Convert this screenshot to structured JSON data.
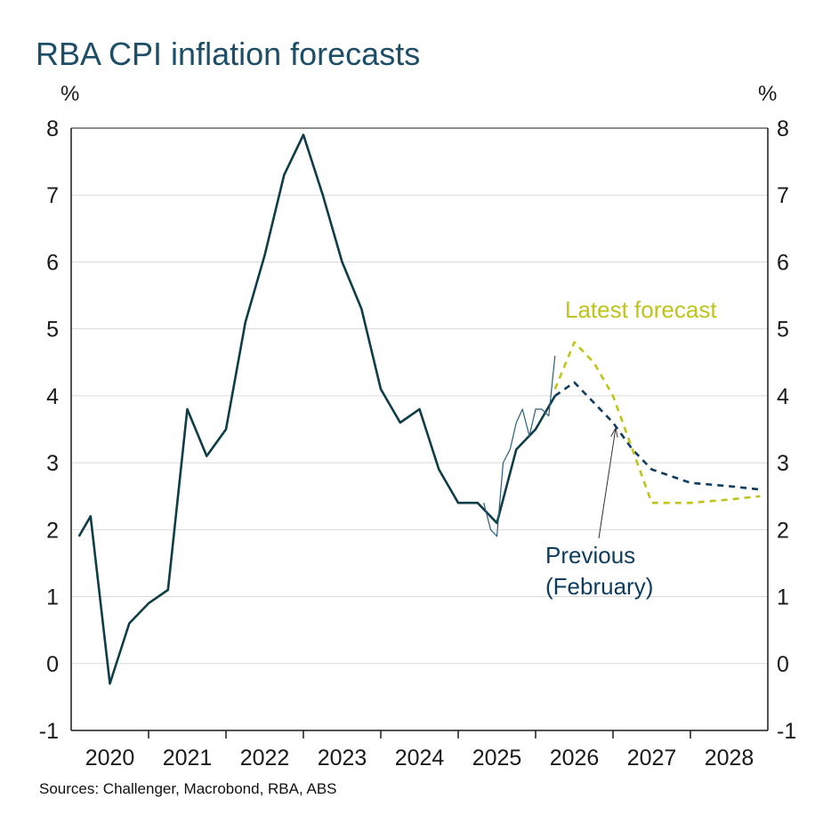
{
  "title": "RBA CPI inflation forecasts",
  "source": "Sources: Challenger, Macrobond, RBA, ABS",
  "colors": {
    "title": "#1d4e68",
    "actual": "#0f3d47",
    "monthly": "#2a5f7a",
    "previous": "#0d3c5e",
    "latest": "#bfc41a",
    "grid": "#d9d9d9",
    "axis": "#1a1a1a"
  },
  "chart_data": {
    "type": "line",
    "title": "RBA CPI inflation forecasts",
    "ylabel_left": "%",
    "ylabel_right": "%",
    "ylim": [
      -1,
      8
    ],
    "yticks": [
      -1,
      0,
      1,
      2,
      3,
      4,
      5,
      6,
      7,
      8
    ],
    "xlim": [
      2019.5,
      2028.5
    ],
    "xtick_labels": [
      "2020",
      "2021",
      "2022",
      "2023",
      "2024",
      "2025",
      "2026",
      "2027",
      "2028"
    ],
    "grid": "horizontal",
    "annotations": [
      {
        "text": "Latest forecast",
        "series": "latest"
      },
      {
        "text": "Previous",
        "series": "previous"
      },
      {
        "text": "(February)",
        "series": "previous"
      }
    ],
    "series": [
      {
        "id": "actual",
        "style": "solid",
        "points": [
          [
            2019.6,
            1.9
          ],
          [
            2019.75,
            2.2
          ],
          [
            2020.0,
            -0.3
          ],
          [
            2020.25,
            0.6
          ],
          [
            2020.5,
            0.9
          ],
          [
            2020.75,
            1.1
          ],
          [
            2021.0,
            3.8
          ],
          [
            2021.25,
            3.1
          ],
          [
            2021.5,
            3.5
          ],
          [
            2021.75,
            5.1
          ],
          [
            2022.0,
            6.1
          ],
          [
            2022.25,
            7.3
          ],
          [
            2022.5,
            7.9
          ],
          [
            2022.75,
            7.0
          ],
          [
            2023.0,
            6.0
          ],
          [
            2023.25,
            5.3
          ],
          [
            2023.5,
            4.1
          ],
          [
            2023.75,
            3.6
          ],
          [
            2024.0,
            3.8
          ],
          [
            2024.25,
            2.9
          ],
          [
            2024.5,
            2.4
          ],
          [
            2024.75,
            2.4
          ],
          [
            2025.0,
            2.1
          ],
          [
            2025.25,
            3.2
          ],
          [
            2025.5,
            3.5
          ],
          [
            2025.75,
            4.0
          ]
        ]
      },
      {
        "id": "monthly",
        "style": "thin",
        "points": [
          [
            2024.83,
            2.4
          ],
          [
            2024.92,
            2.0
          ],
          [
            2025.0,
            1.9
          ],
          [
            2025.08,
            3.0
          ],
          [
            2025.17,
            3.2
          ],
          [
            2025.25,
            3.6
          ],
          [
            2025.33,
            3.8
          ],
          [
            2025.42,
            3.4
          ],
          [
            2025.5,
            3.8
          ],
          [
            2025.58,
            3.8
          ],
          [
            2025.67,
            3.7
          ],
          [
            2025.75,
            4.6
          ]
        ]
      },
      {
        "id": "previous",
        "style": "dashed",
        "points": [
          [
            2025.75,
            4.0
          ],
          [
            2026.0,
            4.2
          ],
          [
            2026.25,
            3.9
          ],
          [
            2026.5,
            3.6
          ],
          [
            2026.75,
            3.2
          ],
          [
            2027.0,
            2.9
          ],
          [
            2027.5,
            2.7
          ],
          [
            2028.0,
            2.65
          ],
          [
            2028.4,
            2.6
          ]
        ]
      },
      {
        "id": "latest",
        "style": "dashed",
        "points": [
          [
            2025.75,
            4.1
          ],
          [
            2026.0,
            4.8
          ],
          [
            2026.25,
            4.5
          ],
          [
            2026.5,
            4.0
          ],
          [
            2026.75,
            3.2
          ],
          [
            2027.0,
            2.4
          ],
          [
            2027.5,
            2.4
          ],
          [
            2028.0,
            2.45
          ],
          [
            2028.4,
            2.5
          ]
        ]
      }
    ]
  }
}
